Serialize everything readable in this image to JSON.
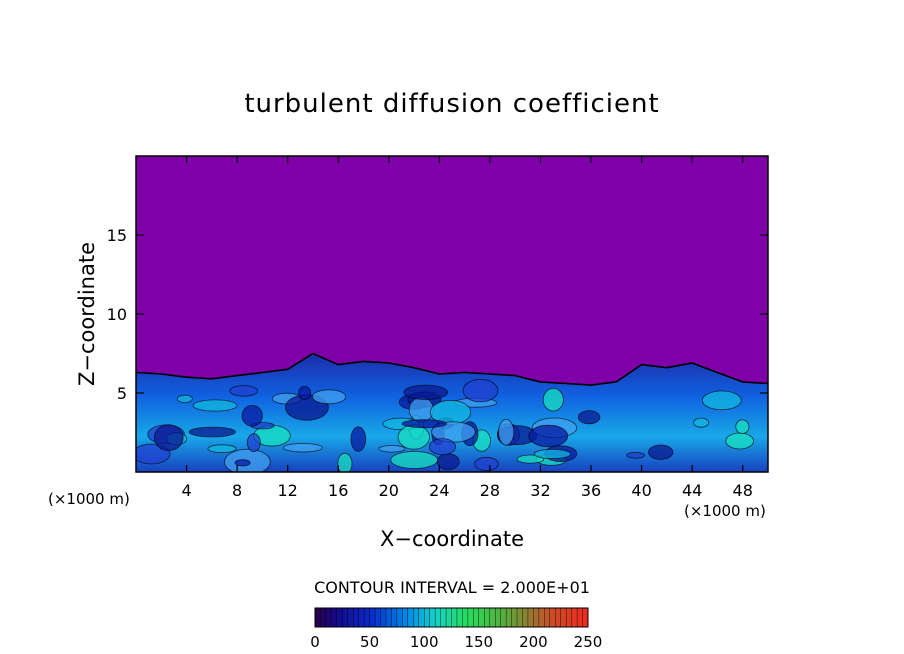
{
  "chart_data": {
    "type": "heatmap",
    "title": "turbulent diffusion coefficient",
    "xlabel": "X−coordinate",
    "ylabel": "Z−coordinate",
    "x_unit": "(×1000 m)",
    "x_unit_right": "(×1000 m)",
    "xlim": [
      0,
      50
    ],
    "ylim": [
      0,
      20
    ],
    "x_ticks": [
      4,
      8,
      12,
      16,
      20,
      24,
      28,
      32,
      36,
      40,
      44,
      48
    ],
    "x_tick_labels": [
      "4",
      "8",
      "12",
      "16",
      "20",
      "24",
      "28",
      "32",
      "36",
      "40",
      "44",
      "48"
    ],
    "y_ticks": [
      5,
      10,
      15
    ],
    "y_tick_labels": [
      "5",
      "10",
      "15"
    ],
    "contour_interval_label": "CONTOUR INTERVAL = 2.000E+01",
    "colorbar": {
      "min": 0,
      "max": 250,
      "ticks": [
        0,
        50,
        100,
        150,
        200,
        250
      ],
      "tick_labels": [
        "0",
        "50",
        "100",
        "150",
        "200",
        "250"
      ]
    },
    "background_color": "#7f00a8",
    "boundary_layer_top": [
      [
        0,
        6.3
      ],
      [
        2,
        6.2
      ],
      [
        4,
        6.0
      ],
      [
        6,
        5.9
      ],
      [
        8,
        6.1
      ],
      [
        10,
        6.3
      ],
      [
        12,
        6.5
      ],
      [
        14,
        7.5
      ],
      [
        16,
        6.8
      ],
      [
        18,
        7.0
      ],
      [
        20,
        6.9
      ],
      [
        22,
        6.6
      ],
      [
        24,
        6.2
      ],
      [
        26,
        6.3
      ],
      [
        28,
        6.2
      ],
      [
        30,
        6.1
      ],
      [
        31,
        5.9
      ],
      [
        32,
        5.7
      ],
      [
        34,
        5.6
      ],
      [
        36,
        5.5
      ],
      [
        38,
        5.7
      ],
      [
        40,
        6.8
      ],
      [
        42,
        6.6
      ],
      [
        44,
        6.9
      ],
      [
        46,
        6.3
      ],
      [
        48,
        5.7
      ],
      [
        50,
        5.6
      ]
    ]
  }
}
